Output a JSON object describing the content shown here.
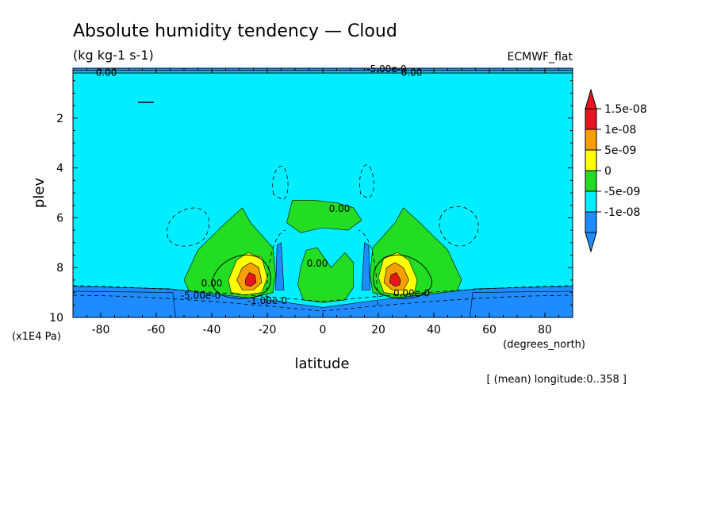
{
  "title": "Absolute humidity tendency — Cloud",
  "units": "(kg kg-1 s-1)",
  "model": "ECMWF_flat",
  "mean_note": "[ (mean) longitude:0..358 ]",
  "chart_data": {
    "type": "heatmap",
    "xlabel": "latitude",
    "x_units": "(degrees_north)",
    "ylabel": "plev",
    "y_units": "(x1E4 Pa)",
    "xlim": [
      -90,
      90
    ],
    "ylim": [
      10,
      0
    ],
    "x_ticks": [
      -80,
      -60,
      -40,
      -20,
      0,
      20,
      40,
      60,
      80
    ],
    "x_tick_labels": [
      "-80",
      "-60",
      "-40",
      "-20",
      "0",
      "20",
      "40",
      "60",
      "80"
    ],
    "y_ticks": [
      2,
      4,
      6,
      8,
      10
    ],
    "y_tick_labels": [
      "2",
      "4",
      "6",
      "8",
      "10"
    ],
    "background_level": "-5e-09..0",
    "levels": [
      {
        "label": "1.5e-08",
        "color": "#e8141e"
      },
      {
        "label": "1e-08",
        "color": "#f5a000"
      },
      {
        "label": "5e-09",
        "color": "#ffff00"
      },
      {
        "label": "0",
        "color": "#22dd22"
      },
      {
        "label": "-5e-09",
        "color": "#00eeff"
      },
      {
        "label": "-1e-08",
        "color": "#1e8cff"
      }
    ],
    "colorbar_top": "#e8141e",
    "colorbar_bottom": "#1e8cff",
    "regions": [
      {
        "level": "0..5e-09",
        "color": "#22dd22",
        "points": [
          [
            -50,
            8.5
          ],
          [
            -45,
            7.3
          ],
          [
            -35,
            6.2
          ],
          [
            -29,
            5.6
          ],
          [
            -26,
            6.2
          ],
          [
            -22,
            6.7
          ],
          [
            -18,
            7.2
          ],
          [
            -17,
            8.3
          ],
          [
            -18,
            9.0
          ],
          [
            -25,
            9.2
          ],
          [
            -38,
            9.3
          ],
          [
            -48,
            9.0
          ]
        ]
      },
      {
        "level": "0..5e-09",
        "color": "#22dd22",
        "points": [
          [
            50,
            8.5
          ],
          [
            45,
            7.3
          ],
          [
            35,
            6.2
          ],
          [
            29,
            5.6
          ],
          [
            26,
            6.2
          ],
          [
            22,
            6.7
          ],
          [
            18,
            7.2
          ],
          [
            17,
            8.3
          ],
          [
            18,
            9.0
          ],
          [
            25,
            9.2
          ],
          [
            38,
            9.3
          ],
          [
            48,
            9.0
          ]
        ]
      },
      {
        "level": "0..5e-09",
        "color": "#22dd22",
        "points": [
          [
            -13,
            6.2
          ],
          [
            -11,
            5.3
          ],
          [
            -3,
            5.3
          ],
          [
            5,
            5.4
          ],
          [
            11,
            5.6
          ],
          [
            14,
            6.1
          ],
          [
            9,
            6.5
          ],
          [
            0,
            6.4
          ],
          [
            -8,
            6.6
          ]
        ]
      },
      {
        "level": "0..5e-09",
        "color": "#22dd22",
        "points": [
          [
            -8,
            8.0
          ],
          [
            -6,
            7.3
          ],
          [
            -2,
            7.2
          ],
          [
            3,
            8.0
          ],
          [
            8,
            7.4
          ],
          [
            11,
            7.8
          ],
          [
            11,
            8.8
          ],
          [
            8,
            9.3
          ],
          [
            0,
            9.4
          ],
          [
            -7,
            9.3
          ],
          [
            -9,
            8.7
          ]
        ]
      },
      {
        "level": "5e-09..1e-08",
        "color": "#ffff00",
        "points": [
          [
            -34,
            8.5
          ],
          [
            -31,
            7.7
          ],
          [
            -27,
            7.4
          ],
          [
            -22,
            7.6
          ],
          [
            -20,
            8.4
          ],
          [
            -22,
            9.0
          ],
          [
            -28,
            9.1
          ],
          [
            -33,
            9.0
          ]
        ]
      },
      {
        "level": "5e-09..1e-08",
        "color": "#ffff00",
        "points": [
          [
            34,
            8.5
          ],
          [
            31,
            7.7
          ],
          [
            27,
            7.4
          ],
          [
            22,
            7.6
          ],
          [
            20,
            8.4
          ],
          [
            22,
            9.0
          ],
          [
            28,
            9.1
          ],
          [
            33,
            9.0
          ]
        ]
      },
      {
        "level": "1e-08..1.5e-08",
        "color": "#f5a000",
        "points": [
          [
            -31,
            8.5
          ],
          [
            -29,
            8.0
          ],
          [
            -26,
            7.8
          ],
          [
            -23,
            8.0
          ],
          [
            -22,
            8.6
          ],
          [
            -25,
            8.9
          ],
          [
            -29,
            8.9
          ]
        ]
      },
      {
        "level": "1e-08..1.5e-08",
        "color": "#f5a000",
        "points": [
          [
            31,
            8.5
          ],
          [
            29,
            8.0
          ],
          [
            26,
            7.8
          ],
          [
            23,
            8.0
          ],
          [
            22,
            8.6
          ],
          [
            25,
            8.9
          ],
          [
            29,
            8.9
          ]
        ]
      },
      {
        "level": ">1.5e-08",
        "color": "#e8141e",
        "points": [
          [
            -28,
            8.5
          ],
          [
            -26.5,
            8.2
          ],
          [
            -24.5,
            8.3
          ],
          [
            -24,
            8.6
          ],
          [
            -26,
            8.75
          ],
          [
            -27.7,
            8.7
          ]
        ]
      },
      {
        "level": ">1.5e-08",
        "color": "#e8141e",
        "points": [
          [
            28,
            8.5
          ],
          [
            26.5,
            8.2
          ],
          [
            24.5,
            8.3
          ],
          [
            24,
            8.6
          ],
          [
            26,
            8.75
          ],
          [
            27.7,
            8.7
          ]
        ]
      },
      {
        "level": "-1e-08..-5e-09",
        "color": "#1e8cff",
        "points": [
          [
            -17,
            8.9
          ],
          [
            -16.5,
            7.1
          ],
          [
            -15,
            7.0
          ],
          [
            -14,
            8.9
          ]
        ]
      },
      {
        "level": "-1e-08..-5e-09",
        "color": "#1e8cff",
        "points": [
          [
            17,
            8.9
          ],
          [
            16.5,
            7.1
          ],
          [
            15,
            7.0
          ],
          [
            14,
            8.9
          ]
        ]
      },
      {
        "level": "-1e-08..-5e-09",
        "color": "#1e8cff",
        "points": [
          [
            -90,
            8.75
          ],
          [
            -55,
            8.85
          ],
          [
            -20,
            9.3
          ],
          [
            0,
            9.6
          ],
          [
            20,
            9.3
          ],
          [
            55,
            8.85
          ],
          [
            90,
            8.75
          ],
          [
            90,
            10
          ],
          [
            -90,
            10
          ]
        ]
      },
      {
        "level": "<-1e-08",
        "color": "#1e8cff",
        "points": [
          [
            -90,
            8.95
          ],
          [
            -54,
            9.0
          ],
          [
            -53,
            10
          ],
          [
            -90,
            10
          ]
        ]
      },
      {
        "level": "<-1e-08",
        "color": "#1e8cff",
        "points": [
          [
            90,
            8.95
          ],
          [
            54,
            9.0
          ],
          [
            53,
            10
          ],
          [
            90,
            10
          ]
        ]
      },
      {
        "level": "-1e-08..-5e-09",
        "color": "#1e8cff",
        "points": [
          [
            -90,
            0.0
          ],
          [
            90,
            0.0
          ],
          [
            90,
            0.1
          ],
          [
            -90,
            0.1
          ]
        ]
      }
    ],
    "contour_labels": [
      {
        "text": "0.00",
        "lat": -78,
        "plev": 0.15
      },
      {
        "text": "-5.00e-0",
        "lat": 23,
        "plev": 0.0
      },
      {
        "text": "0.00",
        "lat": 32,
        "plev": 0.15
      },
      {
        "text": "0.00",
        "lat": 6,
        "plev": 5.6
      },
      {
        "text": "0.00",
        "lat": -2,
        "plev": 7.8
      },
      {
        "text": "0.00",
        "lat": -40,
        "plev": 8.6
      },
      {
        "text": "-5.00e-0",
        "lat": -44,
        "plev": 9.1
      },
      {
        "text": "-1.00e-0",
        "lat": -20,
        "plev": 9.3
      },
      {
        "text": "0.00e-0",
        "lat": 32,
        "plev": 9.0
      }
    ]
  }
}
